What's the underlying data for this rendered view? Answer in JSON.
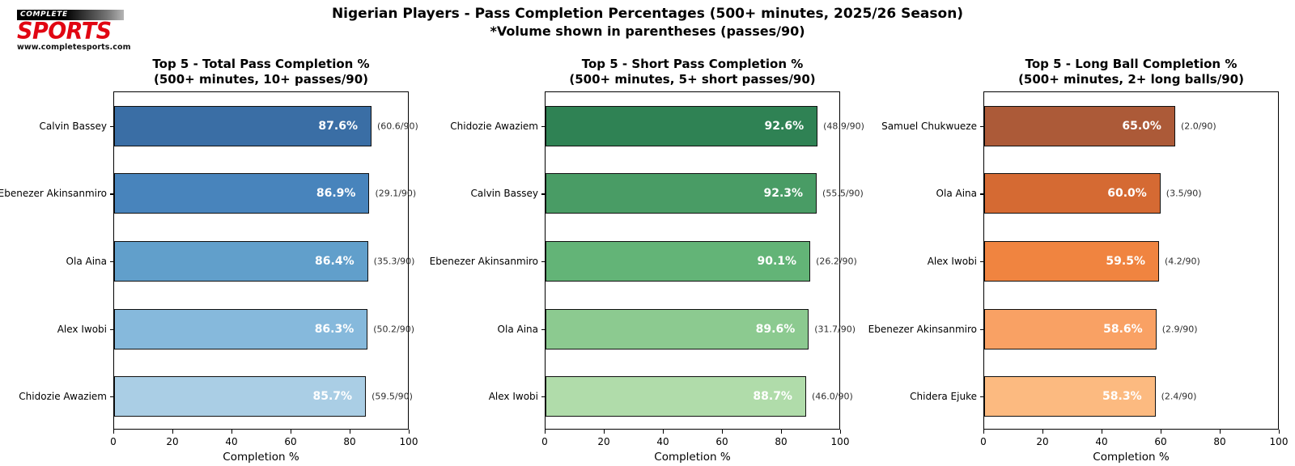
{
  "logo": {
    "top": "COMPLETE",
    "main": "SPORTS",
    "url": "www.completesports.com"
  },
  "header": {
    "title_line1": "Nigerian Players - Pass Completion Percentages (500+ minutes, 2025/26 Season)",
    "title_line2": "*Volume shown in parentheses (passes/90)"
  },
  "chart_data": [
    {
      "type": "bar",
      "orientation": "horizontal",
      "title_line1": "Top 5 - Total Pass Completion %",
      "title_line2": "(500+ minutes, 10+ passes/90)",
      "xlabel": "Completion %",
      "xlim": [
        0,
        100
      ],
      "xticks": [
        "0",
        "20",
        "40",
        "60",
        "80",
        "100"
      ],
      "grid": false,
      "bars": [
        {
          "name": "Calvin Bassey",
          "value": 87.6,
          "label": "87.6%",
          "volume": "(60.6/90)",
          "color": "#3a6ea5"
        },
        {
          "name": "Ebenezer Akinsanmiro",
          "value": 86.9,
          "label": "86.9%",
          "volume": "(29.1/90)",
          "color": "#4884bc"
        },
        {
          "name": "Ola Aina",
          "value": 86.4,
          "label": "86.4%",
          "volume": "(35.3/90)",
          "color": "#619fcb"
        },
        {
          "name": "Alex Iwobi",
          "value": 86.3,
          "label": "86.3%",
          "volume": "(50.2/90)",
          "color": "#86b9dc"
        },
        {
          "name": "Chidozie Awaziem",
          "value": 85.7,
          "label": "85.7%",
          "volume": "(59.5/90)",
          "color": "#aacee5"
        }
      ]
    },
    {
      "type": "bar",
      "orientation": "horizontal",
      "title_line1": "Top 5 - Short Pass Completion %",
      "title_line2": "(500+ minutes, 5+ short passes/90)",
      "xlabel": "Completion %",
      "xlim": [
        0,
        100
      ],
      "xticks": [
        "0",
        "20",
        "40",
        "60",
        "80",
        "100"
      ],
      "grid": false,
      "bars": [
        {
          "name": "Chidozie Awaziem",
          "value": 92.6,
          "label": "92.6%",
          "volume": "(48.9/90)",
          "color": "#2f8254"
        },
        {
          "name": "Calvin Bassey",
          "value": 92.3,
          "label": "92.3%",
          "volume": "(55.5/90)",
          "color": "#499c65"
        },
        {
          "name": "Ebenezer Akinsanmiro",
          "value": 90.1,
          "label": "90.1%",
          "volume": "(26.2/90)",
          "color": "#63b477"
        },
        {
          "name": "Ola Aina",
          "value": 89.6,
          "label": "89.6%",
          "volume": "(31.7/90)",
          "color": "#8cca90"
        },
        {
          "name": "Alex Iwobi",
          "value": 88.7,
          "label": "88.7%",
          "volume": "(46.0/90)",
          "color": "#b0dcaa"
        }
      ]
    },
    {
      "type": "bar",
      "orientation": "horizontal",
      "title_line1": "Top 5 - Long Ball Completion %",
      "title_line2": "(500+ minutes, 2+ long balls/90)",
      "xlabel": "Completion %",
      "xlim": [
        0,
        100
      ],
      "xticks": [
        "0",
        "20",
        "40",
        "60",
        "80",
        "100"
      ],
      "grid": false,
      "bars": [
        {
          "name": "Samuel Chukwueze",
          "value": 65.0,
          "label": "65.0%",
          "volume": "(2.0/90)",
          "color": "#ac5a38"
        },
        {
          "name": "Ola Aina",
          "value": 60.0,
          "label": "60.0%",
          "volume": "(3.5/90)",
          "color": "#d56a33"
        },
        {
          "name": "Alex Iwobi",
          "value": 59.5,
          "label": "59.5%",
          "volume": "(4.2/90)",
          "color": "#f08440"
        },
        {
          "name": "Ebenezer Akinsanmiro",
          "value": 58.6,
          "label": "58.6%",
          "volume": "(2.9/90)",
          "color": "#f9a164"
        },
        {
          "name": "Chidera Ejuke",
          "value": 58.3,
          "label": "58.3%",
          "volume": "(2.4/90)",
          "color": "#fcba80"
        }
      ]
    }
  ]
}
